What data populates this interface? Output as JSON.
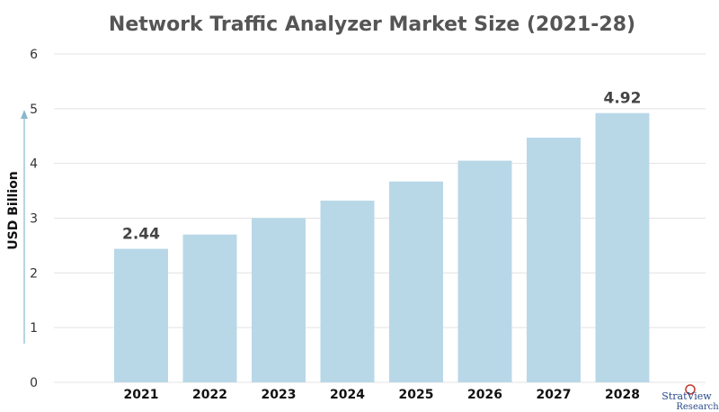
{
  "chart_data": {
    "type": "bar",
    "title": "Network Traffic Analyzer Market Size (2021-28)",
    "ylabel": "USD Billion",
    "xlabel": "",
    "categories": [
      "2021",
      "2022",
      "2023",
      "2024",
      "2025",
      "2026",
      "2027",
      "2028"
    ],
    "values": [
      2.44,
      2.7,
      3.0,
      3.32,
      3.67,
      4.05,
      4.47,
      4.92
    ],
    "data_labels": [
      {
        "index": 0,
        "text": "2.44"
      },
      {
        "index": 7,
        "text": "4.92"
      }
    ],
    "ylim": [
      0,
      6
    ],
    "yticks": [
      0,
      1,
      2,
      3,
      4,
      5,
      6
    ],
    "grid": true,
    "legend": "none",
    "bar_color": "#b8d8e8",
    "grid_color": "#e3e3e3",
    "axis_arrow_color": "#8ab8cc"
  },
  "logo": {
    "main": "StratView",
    "sub": "Research"
  }
}
